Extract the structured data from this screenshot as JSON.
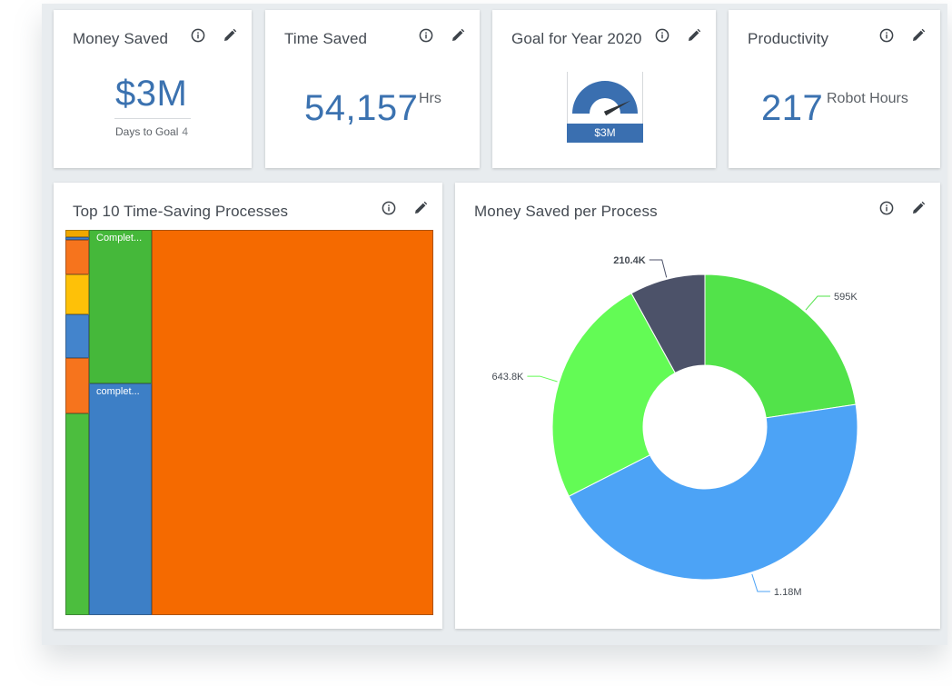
{
  "cards": {
    "money_saved": {
      "title": "Money Saved",
      "value": "$3M",
      "sub_label": "Days to Goal",
      "sub_value": "4"
    },
    "time_saved": {
      "title": "Time Saved",
      "value": "54,157",
      "unit": "Hrs"
    },
    "goal": {
      "title": "Goal for Year 2020",
      "gauge_label": "$3M",
      "gauge_fraction": 0.85
    },
    "productivity": {
      "title": "Productivity",
      "value": "217",
      "unit": "Robot Hours"
    },
    "top10": {
      "title": "Top 10 Time-Saving Processes",
      "tiles": [
        {
          "label": "",
          "color": "#f0a800"
        },
        {
          "label": "",
          "color": "#3d7fd0"
        },
        {
          "label": "",
          "color": "#f6741d"
        },
        {
          "label": "",
          "color": "#fec108"
        },
        {
          "label": "",
          "color": "#4384cc"
        },
        {
          "label": "",
          "color": "#f6741d"
        },
        {
          "label": "",
          "color": "#4cbe3e"
        },
        {
          "label": "Complet...",
          "color": "#45b83a"
        },
        {
          "label": "complet...",
          "color": "#3d7fc6"
        },
        {
          "label": "",
          "color": "#f56a00"
        }
      ]
    },
    "money_per_process": {
      "title": "Money Saved per Process"
    }
  },
  "chart_data": {
    "type": "pie",
    "style": "donut",
    "labels": [
      "595K",
      "1.18M",
      "643.8K",
      "210.4K"
    ],
    "values": [
      595000,
      1180000,
      643800,
      210400
    ],
    "colors": [
      "#52e34a",
      "#4ca3f6",
      "#63fb55",
      "#4c5269"
    ],
    "bold_label_index": 3
  },
  "icons": {
    "info": "info-icon",
    "edit": "pencil-icon"
  }
}
